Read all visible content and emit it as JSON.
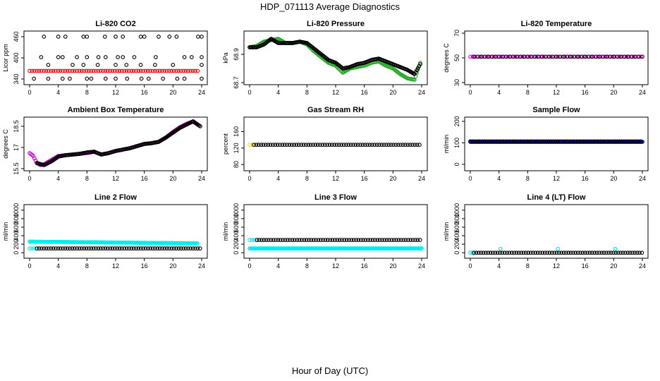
{
  "figure": {
    "title": "HDP_071113  Average Diagnostics",
    "xlabel": "Hour of Day (UTC)"
  },
  "chart_data": [
    {
      "type": "scatter",
      "title": "Li-820 CO2",
      "ylabel": "Licor ppm",
      "xlim": [
        0,
        24
      ],
      "ylim": [
        330,
        470
      ],
      "xticks": [
        0,
        4,
        8,
        12,
        16,
        20,
        24
      ],
      "yticks": [
        340,
        400,
        460
      ],
      "series": [
        {
          "name": "co2",
          "color": "#ff0000",
          "kind": "flat",
          "x0": 0,
          "x1": 23.5,
          "y": 363,
          "trend": 0
        },
        {
          "name": "co2-high",
          "color": "#000000",
          "kind": "points",
          "points": [
            [
              2,
              460
            ],
            [
              4,
              460
            ],
            [
              5,
              460
            ],
            [
              7.5,
              460
            ],
            [
              8,
              460
            ],
            [
              10.5,
              460
            ],
            [
              12,
              460
            ],
            [
              13,
              460
            ],
            [
              15.5,
              460
            ],
            [
              16,
              460
            ],
            [
              18,
              460
            ],
            [
              19.5,
              460
            ],
            [
              20.5,
              460
            ],
            [
              23.5,
              460
            ],
            [
              24,
              460
            ],
            [
              1.6,
              402
            ],
            [
              4,
              402
            ],
            [
              4.6,
              402
            ],
            [
              6.6,
              402
            ],
            [
              8,
              402
            ],
            [
              9.6,
              402
            ],
            [
              10.6,
              402
            ],
            [
              12.3,
              402
            ],
            [
              13,
              402
            ],
            [
              14.6,
              402
            ],
            [
              17.6,
              402
            ],
            [
              21.6,
              402
            ],
            [
              22.6,
              402
            ],
            [
              24,
              402
            ],
            [
              2.6,
              380
            ],
            [
              6,
              380
            ],
            [
              7.5,
              380
            ],
            [
              9.5,
              380
            ],
            [
              12,
              380
            ],
            [
              13.5,
              380
            ],
            [
              15.5,
              380
            ],
            [
              17.5,
              380
            ],
            [
              20,
              380
            ],
            [
              24,
              380
            ],
            [
              0.6,
              341
            ],
            [
              2.6,
              341
            ],
            [
              4.6,
              341
            ],
            [
              5.6,
              341
            ],
            [
              8,
              341
            ],
            [
              8.6,
              341
            ],
            [
              10.6,
              341
            ],
            [
              12,
              341
            ],
            [
              13.6,
              341
            ],
            [
              15.6,
              341
            ],
            [
              16.6,
              341
            ],
            [
              18.6,
              341
            ],
            [
              20.6,
              341
            ],
            [
              21.6,
              341
            ],
            [
              24,
              341
            ]
          ]
        }
      ]
    },
    {
      "type": "scatter",
      "title": "Li-820 Pressure",
      "ylabel": "kPa",
      "xlim": [
        0,
        24
      ],
      "ylim": [
        68.7,
        69.05
      ],
      "xticks": [
        0,
        4,
        8,
        12,
        16,
        20,
        24
      ],
      "yticks": [
        68.7,
        68.9
      ],
      "series": [
        {
          "name": "pressure-green",
          "color": "#22aa22",
          "kind": "curve",
          "points": [
            [
              0,
              68.95
            ],
            [
              1,
              68.96
            ],
            [
              2,
              68.99
            ],
            [
              3,
              69.0
            ],
            [
              4,
              69.01
            ],
            [
              5,
              68.98
            ],
            [
              6,
              68.98
            ],
            [
              7,
              68.99
            ],
            [
              8,
              68.97
            ],
            [
              9,
              68.92
            ],
            [
              10,
              68.88
            ],
            [
              11,
              68.84
            ],
            [
              12,
              68.82
            ],
            [
              13,
              68.77
            ],
            [
              14,
              68.8
            ],
            [
              15,
              68.81
            ],
            [
              16,
              68.82
            ],
            [
              17,
              68.84
            ],
            [
              18,
              68.85
            ],
            [
              19,
              68.82
            ],
            [
              20,
              68.8
            ],
            [
              21,
              68.76
            ],
            [
              22,
              68.73
            ],
            [
              23,
              68.72
            ],
            [
              23.8,
              68.84
            ]
          ]
        },
        {
          "name": "pressure-black",
          "color": "#000000",
          "kind": "curve",
          "points": [
            [
              0,
              68.95
            ],
            [
              1,
              68.95
            ],
            [
              2,
              68.97
            ],
            [
              3,
              69.01
            ],
            [
              4,
              68.98
            ],
            [
              5,
              68.98
            ],
            [
              6,
              68.98
            ],
            [
              7,
              68.99
            ],
            [
              8,
              68.98
            ],
            [
              9,
              68.94
            ],
            [
              10,
              68.9
            ],
            [
              11,
              68.86
            ],
            [
              12,
              68.84
            ],
            [
              13,
              68.8
            ],
            [
              14,
              68.81
            ],
            [
              15,
              68.83
            ],
            [
              16,
              68.84
            ],
            [
              17,
              68.86
            ],
            [
              18,
              68.87
            ],
            [
              19,
              68.85
            ],
            [
              20,
              68.83
            ],
            [
              21,
              68.81
            ],
            [
              22,
              68.79
            ],
            [
              23,
              68.76
            ],
            [
              23.8,
              68.83
            ]
          ]
        }
      ]
    },
    {
      "type": "scatter",
      "title": "Li-820 Temperature",
      "ylabel": "degrees C",
      "xlim": [
        0,
        24
      ],
      "ylim": [
        30,
        70
      ],
      "xticks": [
        0,
        4,
        8,
        12,
        16,
        20,
        24
      ],
      "yticks": [
        30,
        50,
        70
      ],
      "series": [
        {
          "name": "temp-magenta",
          "color": "#dd00dd",
          "kind": "flat",
          "x0": 0,
          "x1": 24,
          "y": 51,
          "trend": 0
        },
        {
          "name": "temp-black",
          "color": "#000000",
          "kind": "flat",
          "x0": 0.5,
          "x1": 24,
          "y": 51,
          "trend": 0,
          "sparse": true
        }
      ]
    },
    {
      "type": "scatter",
      "title": "Ambient Box Temperature",
      "ylabel": "degrees C",
      "xlim": [
        0,
        24
      ],
      "ylim": [
        15.5,
        19.0
      ],
      "xticks": [
        0,
        4,
        8,
        12,
        16,
        20,
        24
      ],
      "yticks": [
        15.5,
        17.0,
        18.5
      ],
      "series": [
        {
          "name": "box-magenta",
          "color": "#dd00dd",
          "kind": "curve",
          "points": [
            [
              0,
              16.6
            ],
            [
              0.5,
              16.4
            ],
            [
              1,
              15.9
            ],
            [
              1.5,
              15.75
            ],
            [
              2,
              15.8
            ],
            [
              3,
              16.1
            ],
            [
              4,
              16.4
            ],
            [
              5,
              16.45
            ],
            [
              6,
              16.5
            ],
            [
              7,
              16.55
            ],
            [
              8,
              16.6
            ],
            [
              9,
              16.7
            ],
            [
              10,
              16.5
            ],
            [
              11,
              16.6
            ],
            [
              12,
              16.75
            ],
            [
              13,
              16.85
            ],
            [
              14,
              16.95
            ],
            [
              15,
              17.1
            ],
            [
              16,
              17.25
            ],
            [
              17,
              17.3
            ],
            [
              18,
              17.4
            ],
            [
              19,
              17.7
            ],
            [
              20,
              18.1
            ],
            [
              21,
              18.45
            ],
            [
              22,
              18.7
            ],
            [
              22.8,
              18.85
            ],
            [
              23.5,
              18.6
            ]
          ]
        },
        {
          "name": "box-black",
          "color": "#000000",
          "kind": "curve",
          "points": [
            [
              1,
              15.9
            ],
            [
              2,
              15.75
            ],
            [
              3,
              16.0
            ],
            [
              4,
              16.35
            ],
            [
              5,
              16.45
            ],
            [
              6,
              16.5
            ],
            [
              7,
              16.55
            ],
            [
              8,
              16.65
            ],
            [
              9,
              16.7
            ],
            [
              10,
              16.5
            ],
            [
              11,
              16.6
            ],
            [
              12,
              16.75
            ],
            [
              13,
              16.85
            ],
            [
              14,
              16.95
            ],
            [
              15,
              17.1
            ],
            [
              16,
              17.25
            ],
            [
              17,
              17.3
            ],
            [
              18,
              17.4
            ],
            [
              19,
              17.7
            ],
            [
              20,
              18.05
            ],
            [
              21,
              18.4
            ],
            [
              22,
              18.65
            ],
            [
              22.8,
              18.85
            ],
            [
              23.8,
              18.5
            ]
          ]
        }
      ]
    },
    {
      "type": "scatter",
      "title": "Gas Stream RH",
      "ylabel": "percent",
      "xlim": [
        0,
        24
      ],
      "ylim": [
        70,
        190
      ],
      "xticks": [
        0,
        4,
        8,
        12,
        16,
        20,
        24
      ],
      "yticks": [
        80,
        120,
        160
      ],
      "series": [
        {
          "name": "rh-yellow",
          "color": "#ffdd00",
          "kind": "flat",
          "x0": 0,
          "x1": 0.6,
          "y": 128,
          "trend": 0
        },
        {
          "name": "rh-black",
          "color": "#000000",
          "kind": "flat",
          "x0": 0.6,
          "x1": 24,
          "y": 128,
          "trend": 0
        }
      ]
    },
    {
      "type": "scatter",
      "title": "Sample Flow",
      "ylabel": "ml/min",
      "xlim": [
        0,
        24
      ],
      "ylim": [
        -20,
        210
      ],
      "xticks": [
        0,
        4,
        8,
        12,
        16,
        20,
        24
      ],
      "yticks": [
        0,
        100,
        200
      ],
      "series": [
        {
          "name": "flow-blue",
          "color": "#0000cc",
          "kind": "flat",
          "x0": 0,
          "x1": 24,
          "y": 105,
          "trend": 0,
          "dense": true
        },
        {
          "name": "flow-black",
          "color": "#000000",
          "kind": "flat",
          "x0": 0,
          "x1": 24,
          "y": 107,
          "trend": 0
        }
      ]
    },
    {
      "type": "scatter",
      "title": "Line 2 Flow",
      "ylabel": "ml/min",
      "xlim": [
        0,
        24
      ],
      "ylim": [
        -80,
        1080
      ],
      "xticks": [
        0,
        4,
        8,
        12,
        16,
        20,
        24
      ],
      "yticks": [
        0,
        200,
        400,
        600,
        800,
        1000
      ],
      "series": [
        {
          "name": "l2-cyan",
          "color": "#00eeee",
          "kind": "flat",
          "x0": 0,
          "x1": 23.5,
          "y": 260,
          "trend": -40,
          "dense": true
        },
        {
          "name": "l2-cyan-low",
          "color": "#00eeee",
          "kind": "flat",
          "x0": 0,
          "x1": 1,
          "y": 100,
          "trend": 0
        },
        {
          "name": "l2-black",
          "color": "#000000",
          "kind": "flat",
          "x0": 1,
          "x1": 24,
          "y": 100,
          "trend": 0
        }
      ]
    },
    {
      "type": "scatter",
      "title": "Line 3 Flow",
      "ylabel": "ml/min",
      "xlim": [
        0,
        24
      ],
      "ylim": [
        -80,
        1080
      ],
      "xticks": [
        0,
        4,
        8,
        12,
        16,
        20,
        24
      ],
      "yticks": [
        0,
        200,
        400,
        600,
        800,
        1000
      ],
      "series": [
        {
          "name": "l3-cyan",
          "color": "#00eeee",
          "kind": "flat",
          "x0": 0,
          "x1": 24,
          "y": 100,
          "trend": 0,
          "dense": true
        },
        {
          "name": "l3-cyan-high",
          "color": "#00eeee",
          "kind": "flat",
          "x0": 0,
          "x1": 1,
          "y": 300,
          "trend": 0
        },
        {
          "name": "l3-black",
          "color": "#000000",
          "kind": "flat",
          "x0": 1,
          "x1": 24,
          "y": 300,
          "trend": 0
        }
      ]
    },
    {
      "type": "scatter",
      "title": "Line 4 (LT) Flow",
      "ylabel": "ml/min",
      "xlim": [
        0,
        24
      ],
      "ylim": [
        -80,
        1080
      ],
      "xticks": [
        0,
        4,
        8,
        12,
        16,
        20,
        24
      ],
      "yticks": [
        0,
        200,
        400,
        600,
        800,
        1000
      ],
      "series": [
        {
          "name": "l4-cyan",
          "color": "#00eeee",
          "kind": "points",
          "points": [
            [
              0,
              0
            ],
            [
              0.3,
              0
            ],
            [
              4.2,
              90
            ],
            [
              12.2,
              90
            ],
            [
              20.2,
              90
            ]
          ]
        },
        {
          "name": "l4-black",
          "color": "#000000",
          "kind": "flat",
          "x0": 0.5,
          "x1": 24,
          "y": 0,
          "trend": 0
        }
      ]
    }
  ]
}
